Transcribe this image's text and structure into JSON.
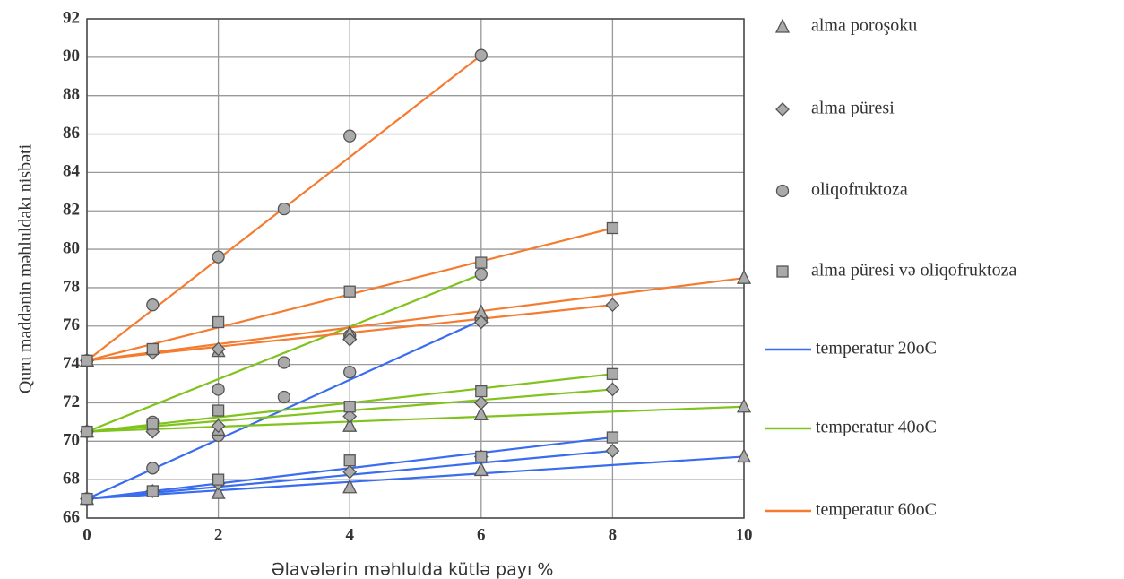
{
  "chart_data": {
    "type": "scatter",
    "xlabel": "Əlavələrin məhlulda kütlə payı %",
    "ylabel": "Quru maddənin məhluldakı nisbəti",
    "xlim": [
      0,
      10
    ],
    "xticks": [
      0,
      2,
      4,
      6,
      8,
      10
    ],
    "ylim": [
      66,
      92
    ],
    "yticks": [
      66,
      68,
      70,
      72,
      74,
      76,
      78,
      80,
      82,
      84,
      86,
      88,
      90,
      92
    ],
    "grid": true,
    "markers": [
      {
        "name": "alma poroşoku",
        "shape": "triangle"
      },
      {
        "name": "alma püresi",
        "shape": "diamond"
      },
      {
        "name": "oliqofruktoza",
        "shape": "circle"
      },
      {
        "name": "alma püresi və oliqofruktoza",
        "shape": "square"
      }
    ],
    "series": [
      {
        "name": "temperatur  20oC",
        "color": "#3a6cf0",
        "groups": [
          {
            "x": [
              0,
              2,
              4,
              6,
              10
            ],
            "values": [
              67,
              67.3,
              67.6,
              68.5,
              69.2
            ]
          },
          {
            "x": [
              0,
              1,
              2,
              4,
              6,
              8
            ],
            "values": [
              67,
              67.4,
              67.8,
              68.4,
              69.2,
              69.5
            ]
          },
          {
            "x": [
              0,
              1,
              2,
              3,
              4,
              6
            ],
            "values": [
              67,
              68.6,
              70.3,
              72.3,
              73.6,
              76.3
            ]
          },
          {
            "x": [
              0,
              1,
              2,
              4,
              6,
              8
            ],
            "values": [
              67,
              67.4,
              68,
              69,
              69.2,
              70.2
            ]
          }
        ]
      },
      {
        "name": "temperatur  40oC",
        "color": "#7fc31c",
        "groups": [
          {
            "x": [
              0,
              2,
              4,
              6,
              10
            ],
            "values": [
              70.5,
              70.6,
              70.8,
              71.4,
              71.8
            ]
          },
          {
            "x": [
              0,
              1,
              2,
              4,
              6,
              8
            ],
            "values": [
              70.5,
              70.5,
              70.8,
              71.3,
              72,
              72.7
            ]
          },
          {
            "x": [
              0,
              1,
              2,
              3,
              4,
              6
            ],
            "values": [
              70.5,
              71,
              72.7,
              74.1,
              75.5,
              78.7
            ]
          },
          {
            "x": [
              0,
              1,
              2,
              4,
              6,
              8
            ],
            "values": [
              70.5,
              70.9,
              71.6,
              71.8,
              72.6,
              73.5
            ]
          }
        ]
      },
      {
        "name": "temperatur  60oC",
        "color": "#f47b2f",
        "groups": [
          {
            "x": [
              0,
              2,
              4,
              6,
              10
            ],
            "values": [
              74.2,
              74.7,
              75.6,
              76.7,
              78.5
            ]
          },
          {
            "x": [
              0,
              1,
              2,
              4,
              6,
              8
            ],
            "values": [
              74.2,
              74.6,
              74.8,
              75.3,
              76.2,
              77.1
            ]
          },
          {
            "x": [
              0,
              1,
              2,
              3,
              4,
              6
            ],
            "values": [
              74.2,
              77.1,
              79.6,
              82.1,
              85.9,
              90.1
            ]
          },
          {
            "x": [
              0,
              1,
              2,
              4,
              6,
              8
            ],
            "values": [
              74.2,
              74.8,
              76.2,
              77.8,
              79.3,
              81.1
            ]
          }
        ]
      }
    ]
  }
}
